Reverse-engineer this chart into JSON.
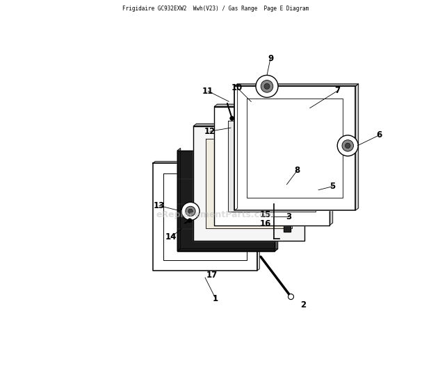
{
  "title": "Frigidaire GC932EXW2  Wwh(V23) / Gas Range  Page E Diagram",
  "background_color": "#ffffff",
  "watermark_text": "eReplacementParts.com",
  "fig_width": 6.2,
  "fig_height": 5.39,
  "dpi": 100
}
